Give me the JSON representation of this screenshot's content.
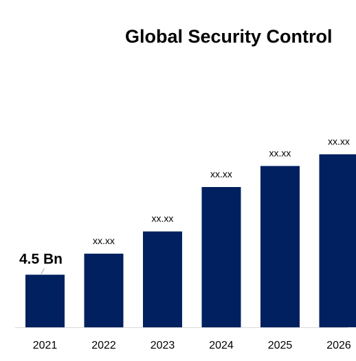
{
  "chart_data": {
    "type": "bar",
    "title": "Global Security Control",
    "categories": [
      "2021",
      "2022",
      "2023",
      "2024",
      "2025",
      "2026"
    ],
    "values": [
      4.5,
      6.3,
      8.2,
      12.0,
      13.8,
      14.8
    ],
    "data_labels": [
      "4.5 Bn",
      "xx.xx",
      "xx.xx",
      "xx.xx",
      "xx.xx",
      "xx.xx"
    ],
    "xlabel": "",
    "ylabel": "",
    "ylim": [
      0,
      18
    ],
    "grid": false,
    "legend": "none",
    "bar_color": "#002060"
  }
}
